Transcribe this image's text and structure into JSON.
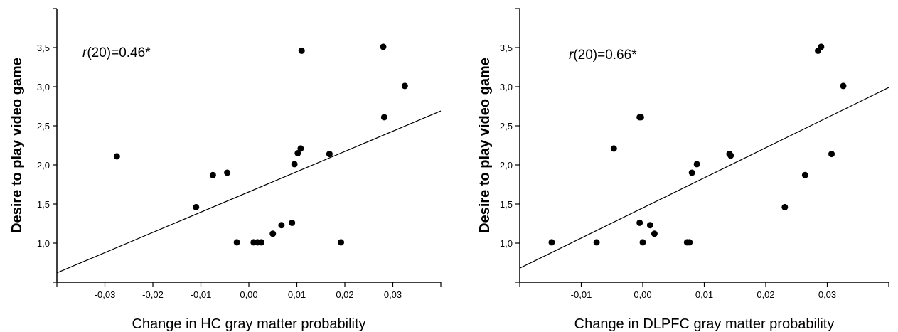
{
  "chart_data": [
    {
      "type": "scatter",
      "xlabel": "Change in HC gray matter probability",
      "ylabel": "Desire to play video game",
      "annotation": {
        "r_italic": "r",
        "rest": "(20)=0.46*"
      },
      "xlim": [
        -0.04,
        0.04
      ],
      "ylim": [
        0.5,
        4.0
      ],
      "xticks": [
        -0.03,
        -0.02,
        -0.01,
        0.0,
        0.01,
        0.02,
        0.03
      ],
      "xtick_labels": [
        "-0,03",
        "-0,02",
        "-0,01",
        "0,00",
        "0,01",
        "0,02",
        "0,03"
      ],
      "yticks": [
        1.0,
        1.5,
        2.0,
        2.5,
        3.0,
        3.5
      ],
      "ytick_labels": [
        "1,0",
        "1,5",
        "2,0",
        "2,5",
        "3,0",
        "3,5"
      ],
      "fit_line": {
        "x": [
          -0.04,
          0.04
        ],
        "y": [
          0.62,
          2.69
        ]
      },
      "points": [
        {
          "x": -0.0275,
          "y": 2.11
        },
        {
          "x": -0.011,
          "y": 1.46
        },
        {
          "x": -0.0075,
          "y": 1.87
        },
        {
          "x": -0.0045,
          "y": 1.9
        },
        {
          "x": -0.0025,
          "y": 1.01
        },
        {
          "x": 0.001,
          "y": 1.01
        },
        {
          "x": 0.0018,
          "y": 1.01
        },
        {
          "x": 0.0026,
          "y": 1.01
        },
        {
          "x": 0.005,
          "y": 1.12
        },
        {
          "x": 0.0068,
          "y": 1.23
        },
        {
          "x": 0.009,
          "y": 1.26
        },
        {
          "x": 0.0095,
          "y": 2.01
        },
        {
          "x": 0.0102,
          "y": 2.15
        },
        {
          "x": 0.0108,
          "y": 2.21
        },
        {
          "x": 0.011,
          "y": 3.46
        },
        {
          "x": 0.0168,
          "y": 2.14
        },
        {
          "x": 0.0192,
          "y": 1.01
        },
        {
          "x": 0.028,
          "y": 3.51
        },
        {
          "x": 0.0282,
          "y": 2.61
        },
        {
          "x": 0.0325,
          "y": 3.01
        }
      ]
    },
    {
      "type": "scatter",
      "xlabel": "Change in DLPFC gray matter probability",
      "ylabel": "Desire to play video game",
      "annotation": {
        "r_italic": "r",
        "rest": "(20)=0.66*"
      },
      "xlim": [
        -0.02,
        0.04
      ],
      "ylim": [
        0.5,
        4.0
      ],
      "xticks": [
        -0.01,
        0.0,
        0.01,
        0.02,
        0.03
      ],
      "xtick_labels": [
        "-0,01",
        "0,00",
        "0,01",
        "0,02",
        "0,03"
      ],
      "yticks": [
        1.0,
        1.5,
        2.0,
        2.5,
        3.0,
        3.5
      ],
      "ytick_labels": [
        "1,0",
        "1,5",
        "2,0",
        "2,5",
        "3,0",
        "3,5"
      ],
      "fit_line": {
        "x": [
          -0.02,
          0.04
        ],
        "y": [
          0.68,
          2.99
        ]
      },
      "points": [
        {
          "x": -0.0148,
          "y": 1.01
        },
        {
          "x": -0.0075,
          "y": 1.01
        },
        {
          "x": -0.0047,
          "y": 2.21
        },
        {
          "x": -0.0005,
          "y": 2.61
        },
        {
          "x": -0.0003,
          "y": 2.61
        },
        {
          "x": -0.0005,
          "y": 1.26
        },
        {
          "x": 0.0,
          "y": 1.01
        },
        {
          "x": 0.0012,
          "y": 1.23
        },
        {
          "x": 0.0019,
          "y": 1.12
        },
        {
          "x": 0.0072,
          "y": 1.01
        },
        {
          "x": 0.0076,
          "y": 1.01
        },
        {
          "x": 0.008,
          "y": 1.9
        },
        {
          "x": 0.0088,
          "y": 2.01
        },
        {
          "x": 0.0141,
          "y": 2.14
        },
        {
          "x": 0.0143,
          "y": 2.12
        },
        {
          "x": 0.0231,
          "y": 1.46
        },
        {
          "x": 0.0264,
          "y": 1.87
        },
        {
          "x": 0.0285,
          "y": 3.46
        },
        {
          "x": 0.029,
          "y": 3.51
        },
        {
          "x": 0.0307,
          "y": 2.14
        },
        {
          "x": 0.0326,
          "y": 3.01
        }
      ]
    }
  ]
}
